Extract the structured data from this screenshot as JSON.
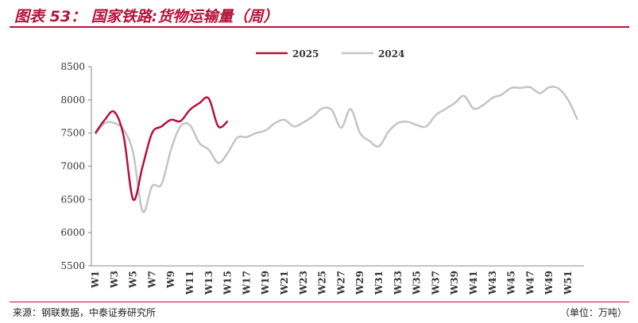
{
  "chart_data": {
    "type": "line",
    "title": "图表 53： 国家铁路:货物运输量（周）",
    "source": "来源：钢联数据，中泰证券研究所",
    "unit": "（单位：万吨）",
    "categories": [
      "W1",
      null,
      "W3",
      null,
      "W5",
      null,
      "W7",
      null,
      "W9",
      null,
      "W11",
      null,
      "W13",
      null,
      "W15",
      null,
      "W17",
      null,
      "W19",
      null,
      "W21",
      null,
      "W23",
      null,
      "W25",
      null,
      "W27",
      null,
      "W29",
      null,
      "W31",
      null,
      "W33",
      null,
      "W35",
      null,
      "W37",
      null,
      "W39",
      null,
      "W41",
      null,
      "W43",
      null,
      "W45",
      null,
      "W47",
      null,
      "W49",
      null,
      "W51",
      null
    ],
    "series": [
      {
        "name": "2025",
        "color": "#b5123c",
        "values": [
          7500,
          7700,
          7820,
          7450,
          6500,
          7000,
          7500,
          7600,
          7700,
          7680,
          7850,
          7950,
          8020,
          7600,
          7680,
          null,
          null,
          null,
          null,
          null,
          null,
          null,
          null,
          null,
          null,
          null,
          null,
          null,
          null,
          null,
          null,
          null,
          null,
          null,
          null,
          null,
          null,
          null,
          null,
          null,
          null,
          null,
          null,
          null,
          null,
          null,
          null,
          null,
          null,
          null,
          null,
          null
        ]
      },
      {
        "name": "2024",
        "color": "#c4c4c4",
        "values": [
          7480,
          7650,
          7650,
          7550,
          7200,
          6320,
          6700,
          6730,
          7250,
          7600,
          7620,
          7350,
          7250,
          7050,
          7200,
          7430,
          7440,
          7500,
          7540,
          7650,
          7700,
          7600,
          7660,
          7750,
          7870,
          7850,
          7580,
          7860,
          7500,
          7380,
          7300,
          7520,
          7650,
          7670,
          7620,
          7600,
          7770,
          7860,
          7950,
          8060,
          7870,
          7920,
          8030,
          8080,
          8180,
          8180,
          8190,
          8100,
          8190,
          8170,
          8000,
          7700
        ]
      }
    ],
    "ylim": [
      5500,
      8500
    ],
    "yticks": [
      5500,
      6000,
      6500,
      7000,
      7500,
      8000,
      8500
    ]
  }
}
